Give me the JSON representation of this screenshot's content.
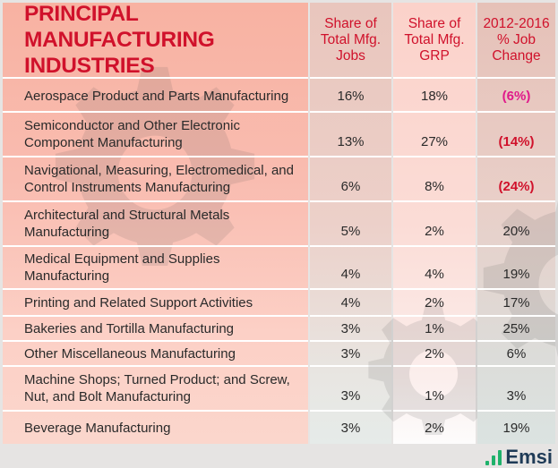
{
  "header": {
    "title": "PRINCIPAL MANUFACTURING INDUSTRIES",
    "col1": "Share of Total Mfg. Jobs",
    "col2": "Share of Total Mfg. GRP",
    "col3": "2012-2016 % Job Change"
  },
  "rows": [
    {
      "industry": "Aerospace Product and Parts Manufacturing",
      "jobs": "16%",
      "grp": "18%",
      "change": "(6%)"
    },
    {
      "industry": "Semiconductor and Other Electronic Component Manufacturing",
      "jobs": "13%",
      "grp": "27%",
      "change": "(14%)"
    },
    {
      "industry": "Navigational, Measuring, Electromedical, and Control Instruments Manufacturing",
      "jobs": "6%",
      "grp": "8%",
      "change": "(24%)"
    },
    {
      "industry": "Architectural and Structural Metals Manufacturing",
      "jobs": "5%",
      "grp": "2%",
      "change": "20%"
    },
    {
      "industry": "Medical Equipment and Supplies Manufacturing",
      "jobs": "4%",
      "grp": "4%",
      "change": "19%"
    },
    {
      "industry": "Printing and Related Support Activities",
      "jobs": "4%",
      "grp": "2%",
      "change": "17%"
    },
    {
      "industry": "Bakeries and Tortilla Manufacturing",
      "jobs": "3%",
      "grp": "1%",
      "change": "25%"
    },
    {
      "industry": "Other Miscellaneous Manufacturing",
      "jobs": "3%",
      "grp": "2%",
      "change": "6%"
    },
    {
      "industry": "Machine Shops; Turned Product; and Screw, Nut, and Bolt Manufacturing",
      "jobs": "3%",
      "grp": "1%",
      "change": "3%"
    },
    {
      "industry": "Beverage Manufacturing",
      "jobs": "3%",
      "grp": "2%",
      "change": "19%"
    }
  ],
  "logo": {
    "text": "Emsi"
  },
  "colors": {
    "header_text": "#d0112b",
    "negative": "#d0112b",
    "negative_alt": "#e0198a",
    "logo_green": "#1fb26b",
    "logo_navy": "#1f3b57"
  },
  "chart_data": {
    "type": "table",
    "title": "PRINCIPAL MANUFACTURING INDUSTRIES",
    "columns": [
      "Industry",
      "Share of Total Mfg. Jobs",
      "Share of Total Mfg. GRP",
      "2012-2016 % Job Change"
    ],
    "values": [
      [
        "Aerospace Product and Parts Manufacturing",
        16,
        18,
        -6
      ],
      [
        "Semiconductor and Other Electronic Component Manufacturing",
        13,
        27,
        -14
      ],
      [
        "Navigational, Measuring, Electromedical, and Control Instruments Manufacturing",
        6,
        8,
        -24
      ],
      [
        "Architectural and Structural Metals Manufacturing",
        5,
        2,
        20
      ],
      [
        "Medical Equipment and Supplies Manufacturing",
        4,
        4,
        19
      ],
      [
        "Printing and Related Support Activities",
        4,
        2,
        17
      ],
      [
        "Bakeries and Tortilla Manufacturing",
        3,
        1,
        25
      ],
      [
        "Other Miscellaneous Manufacturing",
        3,
        2,
        6
      ],
      [
        "Machine Shops; Turned Product; and Screw, Nut, and Bolt Manufacturing",
        3,
        1,
        3
      ],
      [
        "Beverage Manufacturing",
        3,
        2,
        19
      ]
    ]
  }
}
